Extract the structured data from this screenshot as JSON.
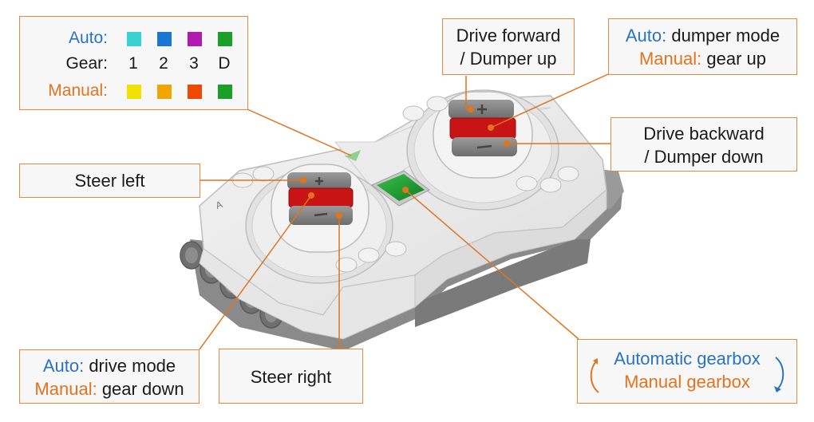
{
  "legend": {
    "auto_label": "Auto:",
    "gear_label": "Gear:",
    "manual_label": "Manual:",
    "gears": [
      "1",
      "2",
      "3",
      "D"
    ],
    "auto_colors": [
      "#3ad6d6",
      "#1a78d8",
      "#b51ab5",
      "#1aa32a"
    ],
    "manual_colors": [
      "#f5e600",
      "#f5a800",
      "#f24a00",
      "#1aa32a"
    ]
  },
  "callouts": {
    "drive_forward": {
      "line1": "Drive forward",
      "line2": "/ Dumper up"
    },
    "dumper_mode": {
      "auto": "Auto:",
      "auto_text": " dumper mode",
      "manual": "Manual:",
      "manual_text": " gear up"
    },
    "steer_left": {
      "text": "Steer left"
    },
    "drive_backward": {
      "line1": "Drive backward",
      "line2": "/ Dumper down"
    },
    "drive_mode": {
      "auto": "Auto:",
      "auto_text": " drive mode",
      "manual": "Manual:",
      "manual_text": " gear down"
    },
    "steer_right": {
      "text": "Steer right"
    },
    "gearbox": {
      "automatic": "Automatic gearbox",
      "manual": "Manual gearbox"
    }
  },
  "colors": {
    "accent_orange": "#e0741f",
    "accent_blue": "#2a73c0",
    "button_red": "#c81414",
    "button_green": "#1a8f2a",
    "button_grey": "#7d7d7d"
  },
  "icons": [
    "cycle-arrow-up-icon",
    "cycle-arrow-down-icon"
  ]
}
